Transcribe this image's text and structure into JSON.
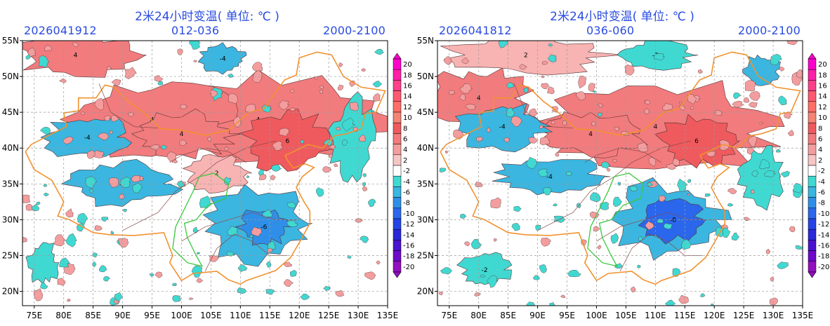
{
  "map_data": {
    "domain": "temperature change map",
    "lon_range": [
      73,
      135
    ],
    "lat_range": [
      18,
      55
    ],
    "lon_ticks": [
      "75E",
      "80E",
      "85E",
      "90E",
      "95E",
      "100E",
      "105E",
      "110E",
      "115E",
      "120E",
      "125E",
      "130E",
      "135E"
    ],
    "lat_ticks": [
      "55N",
      "50N",
      "45N",
      "40N",
      "35N",
      "30N",
      "25N",
      "20N"
    ],
    "colorbar_levels": [
      "20",
      "18",
      "16",
      "14",
      "12",
      "10",
      "8",
      "6",
      "4",
      "2",
      "-2",
      "-4",
      "-6",
      "-8",
      "-10",
      "-12",
      "-14",
      "-16",
      "-18",
      "-20"
    ],
    "colorbar_colors": [
      "#ff00cc",
      "#ff20a8",
      "#ff3f8a",
      "#ff5a70",
      "#ff6f66",
      "#f48474",
      "#ef5a5e",
      "#f27b7d",
      "#f49d9e",
      "#f8c5c5",
      "#ffffff",
      "#3fd9d2",
      "#3ab6e0",
      "#2f8fe8",
      "#2a67ec",
      "#2644e6",
      "#2a28d8",
      "#4a12d0",
      "#6e0ac8",
      "#9210c0"
    ]
  },
  "panels": [
    {
      "title": "2米24小时变温( 单位: ℃ )",
      "init": "2026041912",
      "range": "012-036",
      "time": "2000-2100",
      "blobs": [
        {
          "kind": "warm",
          "lon": 113,
          "lat": 44,
          "rx": 22,
          "ry": 6,
          "level": 4
        },
        {
          "kind": "warm",
          "lon": 95,
          "lat": 44,
          "rx": 14,
          "ry": 5,
          "level": 4
        },
        {
          "kind": "warm",
          "lon": 118,
          "lat": 41,
          "rx": 7,
          "ry": 4,
          "level": 6
        },
        {
          "kind": "warm",
          "lon": 100,
          "lat": 42,
          "rx": 9,
          "ry": 3,
          "level": 4
        },
        {
          "kind": "warm",
          "lon": 82,
          "lat": 53,
          "rx": 10,
          "ry": 3,
          "level": 4
        },
        {
          "kind": "warm",
          "lon": 106,
          "lat": 36.5,
          "rx": 5,
          "ry": 2.5,
          "level": 2
        },
        {
          "kind": "cold",
          "lon": 113,
          "lat": 29.5,
          "rx": 9,
          "ry": 5,
          "level": -4
        },
        {
          "kind": "cold",
          "lon": 114,
          "lat": 29,
          "rx": 4,
          "ry": 2.5,
          "level": -6
        },
        {
          "kind": "cold",
          "lon": 90,
          "lat": 35,
          "rx": 9,
          "ry": 3,
          "level": -4
        },
        {
          "kind": "cold",
          "lon": 84,
          "lat": 41.5,
          "rx": 7,
          "ry": 3,
          "level": -4
        },
        {
          "kind": "cold",
          "lon": 129,
          "lat": 41,
          "rx": 3.5,
          "ry": 6,
          "level": -2
        },
        {
          "kind": "cold",
          "lon": 76.5,
          "lat": 24,
          "rx": 2.5,
          "ry": 3,
          "level": -2
        },
        {
          "kind": "cold",
          "lon": 107,
          "lat": 52.5,
          "rx": 4,
          "ry": 2,
          "level": -4
        }
      ]
    },
    {
      "title": "2米24小时变温( 单位: ℃ )",
      "init": "2026041812",
      "range": "036-060",
      "time": "2000-2100",
      "blobs": [
        {
          "kind": "warm",
          "lon": 110,
          "lat": 43,
          "rx": 22,
          "ry": 6,
          "level": 4
        },
        {
          "kind": "warm",
          "lon": 117,
          "lat": 41,
          "rx": 6,
          "ry": 3.5,
          "level": 6
        },
        {
          "kind": "warm",
          "lon": 80,
          "lat": 47,
          "rx": 8,
          "ry": 4,
          "level": 4
        },
        {
          "kind": "warm",
          "lon": 99,
          "lat": 42,
          "rx": 9,
          "ry": 3,
          "level": 4
        },
        {
          "kind": "warm",
          "lon": 88,
          "lat": 53,
          "rx": 14,
          "ry": 2.5,
          "level": 2
        },
        {
          "kind": "cold",
          "lon": 112,
          "lat": 30,
          "rx": 9,
          "ry": 5,
          "level": -4
        },
        {
          "kind": "cold",
          "lon": 113,
          "lat": 30,
          "rx": 5,
          "ry": 3,
          "level": -8
        },
        {
          "kind": "cold",
          "lon": 92,
          "lat": 36,
          "rx": 9,
          "ry": 2.5,
          "level": -4
        },
        {
          "kind": "cold",
          "lon": 84,
          "lat": 43,
          "rx": 8,
          "ry": 3,
          "level": -4
        },
        {
          "kind": "cold",
          "lon": 128,
          "lat": 36,
          "rx": 3.5,
          "ry": 4,
          "level": -2
        },
        {
          "kind": "cold",
          "lon": 128,
          "lat": 51,
          "rx": 3,
          "ry": 2,
          "level": -4
        },
        {
          "kind": "cold",
          "lon": 81,
          "lat": 23,
          "rx": 4,
          "ry": 2.5,
          "level": -2
        },
        {
          "kind": "cold",
          "lon": 110,
          "lat": 53,
          "rx": 6,
          "ry": 2,
          "level": -2
        }
      ]
    }
  ]
}
